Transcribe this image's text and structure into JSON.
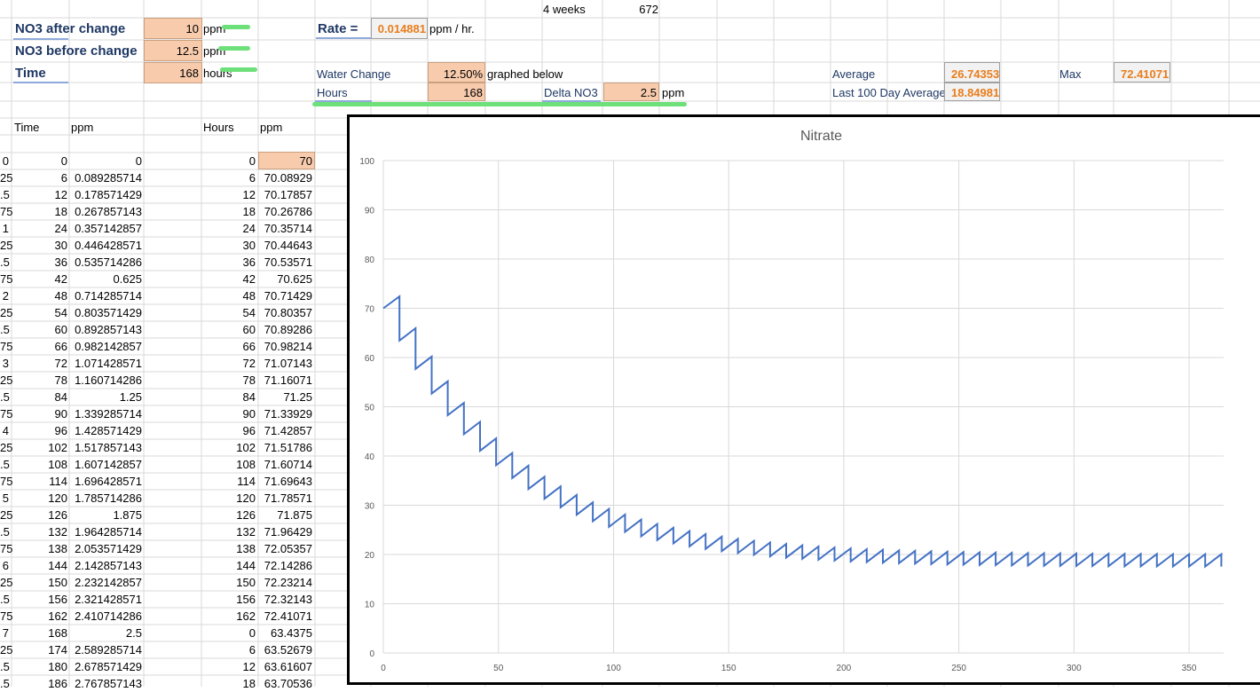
{
  "top_row": {
    "weeks_label": "4 weeks",
    "weeks_hours": "672"
  },
  "params": {
    "no3_after_label": "NO3 after change",
    "no3_after_value": "10",
    "no3_after_unit": "ppm",
    "no3_before_label": "NO3 before change",
    "no3_before_value": "12.5",
    "no3_before_unit": "ppm",
    "time_label": "Time",
    "time_value": "168",
    "time_unit": "hours"
  },
  "rate": {
    "label": "Rate =",
    "value": "0.014881",
    "unit": "ppm / hr."
  },
  "water_change": {
    "label": "Water Change",
    "value": "12.50%",
    "note": "graphed below"
  },
  "hours": {
    "label": "Hours",
    "value": "168"
  },
  "delta": {
    "label": "Delta NO3",
    "value": "2.5",
    "unit": "ppm"
  },
  "stats": {
    "average_label": "Average",
    "average_value": "26.74353",
    "last100_label": "Last 100 Day Average",
    "last100_value": "18.84981",
    "max_label": "Max",
    "max_value": "72.41071"
  },
  "table1": {
    "headers": [
      "Time",
      "ppm"
    ],
    "edge": [
      "0",
      "25",
      ".5",
      "75",
      "1",
      "25",
      ".5",
      "75",
      "2",
      "25",
      ".5",
      "75",
      "3",
      "25",
      ".5",
      "75",
      "4",
      "25",
      ".5",
      "75",
      "5",
      "25",
      ".5",
      "75",
      "6",
      "25",
      ".5",
      "75",
      "7",
      "25",
      ".5",
      ".5"
    ],
    "time": [
      "0",
      "6",
      "12",
      "18",
      "24",
      "30",
      "36",
      "42",
      "48",
      "54",
      "60",
      "66",
      "72",
      "78",
      "84",
      "90",
      "96",
      "102",
      "108",
      "114",
      "120",
      "126",
      "132",
      "138",
      "144",
      "150",
      "156",
      "162",
      "168",
      "174",
      "180",
      "186"
    ],
    "ppm": [
      "0",
      "0.089285714",
      "0.178571429",
      "0.267857143",
      "0.357142857",
      "0.446428571",
      "0.535714286",
      "0.625",
      "0.714285714",
      "0.803571429",
      "0.892857143",
      "0.982142857",
      "1.071428571",
      "1.160714286",
      "1.25",
      "1.339285714",
      "1.428571429",
      "1.517857143",
      "1.607142857",
      "1.696428571",
      "1.785714286",
      "1.875",
      "1.964285714",
      "2.053571429",
      "2.142857143",
      "2.232142857",
      "2.321428571",
      "2.410714286",
      "2.5",
      "2.589285714",
      "2.678571429",
      "2.767857143"
    ]
  },
  "table2": {
    "headers": [
      "Hours",
      "ppm"
    ],
    "hours": [
      "0",
      "6",
      "12",
      "18",
      "24",
      "30",
      "36",
      "42",
      "48",
      "54",
      "60",
      "66",
      "72",
      "78",
      "84",
      "90",
      "96",
      "102",
      "108",
      "114",
      "120",
      "126",
      "132",
      "138",
      "144",
      "150",
      "156",
      "162",
      "0",
      "6",
      "12",
      "18"
    ],
    "ppm": [
      "70",
      "70.08929",
      "70.17857",
      "70.26786",
      "70.35714",
      "70.44643",
      "70.53571",
      "70.625",
      "70.71429",
      "70.80357",
      "70.89286",
      "70.98214",
      "71.07143",
      "71.16071",
      "71.25",
      "71.33929",
      "71.42857",
      "71.51786",
      "71.60714",
      "71.69643",
      "71.78571",
      "71.875",
      "71.96429",
      "72.05357",
      "72.14286",
      "72.23214",
      "72.32143",
      "72.41071",
      "63.4375",
      "63.52679",
      "63.61607",
      "63.70536"
    ]
  },
  "colors": {
    "highlight_fill": "#f8cbad",
    "accent_text": "#e97d1c",
    "label_text": "#1f3864",
    "series_line": "#4472c4",
    "marker": "#6ee07a"
  },
  "chart_data": {
    "type": "line",
    "title": "Nitrate",
    "xlabel": "",
    "ylabel": "",
    "xlim": [
      0,
      365
    ],
    "ylim": [
      0,
      100
    ],
    "x_ticks": [
      0,
      50,
      100,
      150,
      200,
      250,
      300,
      350
    ],
    "y_ticks": [
      0,
      10,
      20,
      30,
      40,
      50,
      60,
      70,
      80,
      90,
      100
    ],
    "grid": true,
    "legend": "none",
    "series": [
      {
        "color": "#4472c4",
        "x": [
          0,
          7,
          7,
          14,
          14,
          21,
          21,
          28,
          28,
          35,
          35,
          42,
          42,
          49,
          49,
          56,
          56,
          63,
          63,
          70,
          70,
          77,
          77,
          84,
          84,
          91,
          91,
          98,
          98,
          105,
          105,
          112,
          112,
          119,
          119,
          126,
          126,
          133,
          133,
          140,
          140,
          147,
          147,
          154,
          154,
          161,
          161,
          168,
          168,
          175,
          175,
          182,
          182,
          189,
          189,
          196,
          196,
          203,
          203,
          210,
          210,
          217,
          217,
          224,
          224,
          231,
          231,
          238,
          238,
          245,
          245,
          252,
          252,
          259,
          259,
          266,
          266,
          273,
          273,
          280,
          280,
          287,
          287,
          294,
          294,
          301,
          301,
          308,
          308,
          315,
          315,
          322,
          322,
          329,
          329,
          336,
          336,
          343,
          343,
          350,
          350,
          357,
          357,
          364,
          364
        ],
        "y": [
          70.0,
          72.41,
          63.44,
          65.94,
          57.7,
          60.2,
          52.68,
          55.18,
          48.28,
          50.78,
          44.44,
          46.94,
          41.07,
          43.57,
          38.12,
          40.62,
          35.54,
          38.04,
          33.29,
          35.79,
          31.32,
          33.82,
          29.59,
          32.09,
          28.08,
          30.58,
          26.76,
          29.26,
          25.6,
          28.1,
          24.59,
          27.09,
          23.7,
          26.2,
          22.93,
          25.43,
          22.25,
          24.75,
          21.65,
          24.15,
          21.13,
          23.63,
          20.68,
          23.18,
          20.28,
          22.78,
          19.93,
          22.43,
          19.63,
          22.13,
          19.36,
          21.86,
          19.13,
          21.63,
          18.93,
          21.43,
          18.75,
          21.25,
          18.59,
          21.09,
          18.45,
          20.95,
          18.33,
          20.83,
          18.23,
          20.73,
          18.14,
          20.64,
          18.06,
          20.56,
          17.99,
          20.49,
          17.93,
          20.43,
          17.88,
          20.38,
          17.83,
          20.33,
          17.79,
          20.29,
          17.75,
          20.25,
          17.72,
          20.22,
          17.69,
          20.19,
          17.67,
          20.17,
          17.65,
          20.15,
          17.63,
          20.13,
          17.61,
          20.11,
          17.6,
          20.1,
          17.58,
          20.08,
          17.57,
          20.07,
          17.56,
          20.06,
          17.55,
          20.05,
          17.55
        ]
      }
    ]
  }
}
